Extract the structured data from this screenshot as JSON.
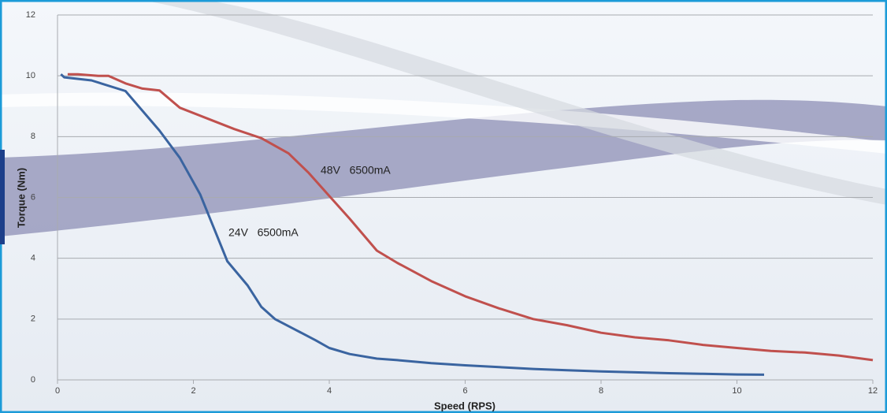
{
  "chart_data": {
    "type": "line",
    "x_label": "Speed (RPS)",
    "y_label": "Torque (Nm)",
    "xlim": [
      0,
      12
    ],
    "ylim": [
      0,
      12
    ],
    "xticks": [
      0,
      2,
      4,
      6,
      8,
      10,
      12
    ],
    "yticks": [
      0,
      2,
      4,
      6,
      8,
      10,
      12
    ],
    "grid": true,
    "series": [
      {
        "name": "24V   6500mA",
        "color": "#3a64a0",
        "x": [
          0.05,
          0.1,
          0.5,
          1,
          1.5,
          1.8,
          2.1,
          2.3,
          2.5,
          2.8,
          3,
          3.2,
          3.5,
          3.8,
          4,
          4.3,
          4.7,
          5,
          5.5,
          6,
          6.5,
          7,
          7.5,
          8,
          8.5,
          9,
          9.5,
          10,
          10.4
        ],
        "values": [
          10.05,
          9.95,
          9.85,
          9.5,
          8.2,
          7.3,
          6.1,
          5,
          3.9,
          3.1,
          2.4,
          2,
          1.65,
          1.3,
          1.05,
          0.85,
          0.7,
          0.65,
          0.55,
          0.48,
          0.42,
          0.36,
          0.32,
          0.28,
          0.25,
          0.22,
          0.2,
          0.18,
          0.17
        ]
      },
      {
        "name": "48V   6500mA",
        "color": "#c0504d",
        "x": [
          0.15,
          0.3,
          0.6,
          0.75,
          1,
          1.25,
          1.5,
          1.8,
          2.2,
          2.6,
          3,
          3.4,
          3.7,
          4,
          4.3,
          4.7,
          5,
          5.5,
          6,
          6.5,
          7,
          7.5,
          8,
          8.5,
          9,
          9.5,
          10,
          10.5,
          11,
          11.5,
          12
        ],
        "values": [
          10.05,
          10.05,
          10,
          10,
          9.75,
          9.58,
          9.52,
          8.95,
          8.6,
          8.25,
          7.95,
          7.45,
          6.8,
          6.05,
          5.3,
          4.25,
          3.85,
          3.25,
          2.75,
          2.35,
          2,
          1.8,
          1.55,
          1.4,
          1.3,
          1.15,
          1.05,
          0.95,
          0.9,
          0.8,
          0.65
        ]
      }
    ]
  }
}
